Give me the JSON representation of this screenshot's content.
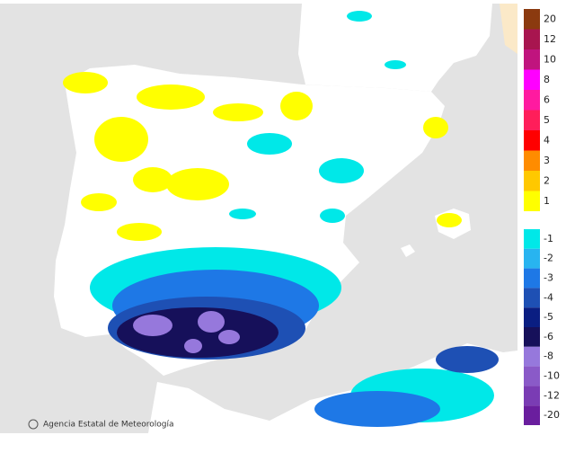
{
  "legend": {
    "items": [
      {
        "label": "20",
        "color": "#8b3a0f"
      },
      {
        "label": "12",
        "color": "#a8154f"
      },
      {
        "label": "10",
        "color": "#c0147e"
      },
      {
        "label": "8",
        "color": "#ff00ff"
      },
      {
        "label": "6",
        "color": "#ff1aa0"
      },
      {
        "label": "5",
        "color": "#ff1e5a"
      },
      {
        "label": "4",
        "color": "#ff0000"
      },
      {
        "label": "3",
        "color": "#ff8c00"
      },
      {
        "label": "2",
        "color": "#ffc800"
      },
      {
        "label": "1",
        "color": "#ffff00"
      },
      {
        "label": "-1",
        "color": "#00e8e8"
      },
      {
        "label": "-2",
        "color": "#28b4f0"
      },
      {
        "label": "-3",
        "color": "#1e78e6"
      },
      {
        "label": "-4",
        "color": "#1e50b4"
      },
      {
        "label": "-5",
        "color": "#0a1e82"
      },
      {
        "label": "-6",
        "color": "#16105a"
      },
      {
        "label": "-8",
        "color": "#9678dc"
      },
      {
        "label": "-10",
        "color": "#8a5ac8"
      },
      {
        "label": "-12",
        "color": "#7a3cb4"
      },
      {
        "label": "-20",
        "color": "#6a1e9e"
      }
    ]
  },
  "credit": "Agencia Estatal de Meteorología"
}
